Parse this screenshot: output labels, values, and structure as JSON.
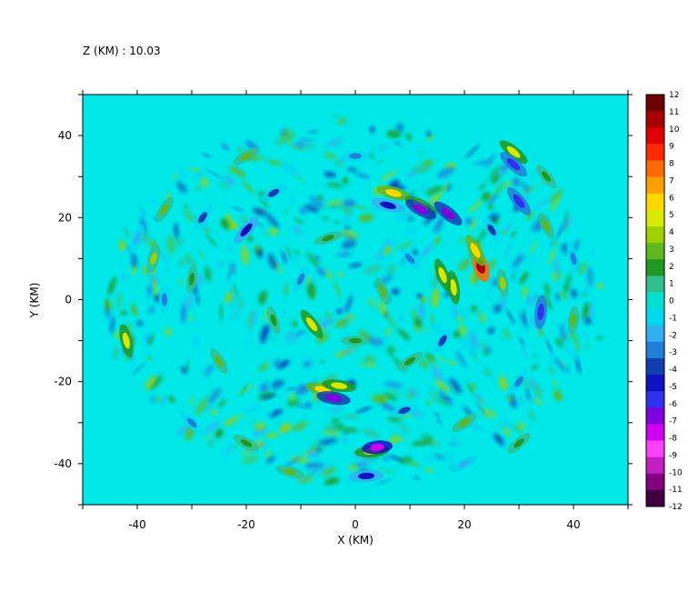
{
  "chart_data": {
    "type": "heatmap",
    "title": "Z (KM) : 10.03",
    "xlabel": "X (KM)",
    "ylabel": "Y (KM)",
    "xlim": [
      -50,
      50
    ],
    "ylim": [
      -50,
      50
    ],
    "x_ticks": [
      -40,
      -20,
      0,
      20,
      40
    ],
    "y_ticks": [
      -40,
      -20,
      0,
      20,
      40
    ],
    "x_minor_ticks": [
      -50,
      -40,
      -30,
      -20,
      -10,
      0,
      10,
      20,
      30,
      40,
      50
    ],
    "y_minor_ticks": [
      -50,
      -40,
      -30,
      -20,
      -10,
      0,
      10,
      20,
      30,
      40,
      50
    ],
    "background_color": "#00e8e8",
    "colorbar": {
      "levels": [
        "12",
        "11",
        "10",
        "9",
        "8",
        "7",
        "6",
        "5",
        "4",
        "3",
        "2",
        "1",
        "0",
        "-1",
        "-2",
        "-3",
        "-4",
        "-5",
        "-6",
        "-7",
        "-8",
        "-9",
        "-10",
        "-11",
        "-12"
      ],
      "colors": [
        "#6b0000",
        "#a80000",
        "#e00000",
        "#ff2a00",
        "#ff6a00",
        "#ffa000",
        "#ffd800",
        "#d8e800",
        "#a0d000",
        "#60b820",
        "#209820",
        "#30c090",
        "#00e0d0",
        "#00d8f0",
        "#30b0f0",
        "#2080d8",
        "#1040b0",
        "#1010c0",
        "#3030f0",
        "#8000e0",
        "#d000f0",
        "#ff40ff",
        "#c020c0",
        "#800080",
        "#400040"
      ]
    },
    "features": [
      {
        "x": 23,
        "y": 8,
        "value": 11
      },
      {
        "x": 22,
        "y": 12,
        "value": 6
      },
      {
        "x": 18,
        "y": 3,
        "value": 5
      },
      {
        "x": 16,
        "y": 6,
        "value": 5
      },
      {
        "x": 29,
        "y": 36,
        "value": 5
      },
      {
        "x": 7,
        "y": 26,
        "value": 6
      },
      {
        "x": 12,
        "y": 23,
        "value": 5
      },
      {
        "x": -6,
        "y": -22,
        "value": 6
      },
      {
        "x": -3,
        "y": -21,
        "value": 5
      },
      {
        "x": 3,
        "y": -37,
        "value": 5
      },
      {
        "x": -8,
        "y": -6,
        "value": 5
      },
      {
        "x": -42,
        "y": -10,
        "value": 5
      },
      {
        "x": -37,
        "y": 10,
        "value": 4
      },
      {
        "x": 27,
        "y": 4,
        "value": 4
      },
      {
        "x": 5,
        "y": 2,
        "value": 3
      },
      {
        "x": -25,
        "y": -15,
        "value": 3
      },
      {
        "x": -35,
        "y": 22,
        "value": 3
      },
      {
        "x": -20,
        "y": 35,
        "value": 3
      },
      {
        "x": 35,
        "y": 18,
        "value": 3
      },
      {
        "x": 40,
        "y": -5,
        "value": 3
      },
      {
        "x": -12,
        "y": -42,
        "value": 3
      },
      {
        "x": 20,
        "y": -30,
        "value": 3
      },
      {
        "x": 17,
        "y": 21,
        "value": -7
      },
      {
        "x": 12,
        "y": 22,
        "value": -7
      },
      {
        "x": 30,
        "y": 24,
        "value": -6
      },
      {
        "x": 29,
        "y": 33,
        "value": -6
      },
      {
        "x": 34,
        "y": -3,
        "value": -6
      },
      {
        "x": -4,
        "y": -24,
        "value": -7
      },
      {
        "x": 4,
        "y": -36,
        "value": -8
      },
      {
        "x": 2,
        "y": -43,
        "value": -5
      },
      {
        "x": 6,
        "y": 23,
        "value": -5
      },
      {
        "x": -20,
        "y": 17,
        "value": -5
      },
      {
        "x": -28,
        "y": 20,
        "value": -4
      },
      {
        "x": 16,
        "y": -10,
        "value": -4
      },
      {
        "x": 9,
        "y": -27,
        "value": -4
      },
      {
        "x": -15,
        "y": 26,
        "value": -4
      },
      {
        "x": 25,
        "y": 17,
        "value": -4
      },
      {
        "x": -35,
        "y": 0,
        "value": -3
      },
      {
        "x": -10,
        "y": 5,
        "value": -3
      },
      {
        "x": 10,
        "y": 10,
        "value": -3
      },
      {
        "x": 30,
        "y": -20,
        "value": -3
      },
      {
        "x": -30,
        "y": -30,
        "value": -3
      },
      {
        "x": 0,
        "y": 35,
        "value": -3
      },
      {
        "x": 40,
        "y": 10,
        "value": -3
      },
      {
        "x": -40,
        "y": 15,
        "value": -2
      },
      {
        "x": 20,
        "y": -40,
        "value": -2
      },
      {
        "x": -20,
        "y": -35,
        "value": 2
      },
      {
        "x": 30,
        "y": -35,
        "value": 2
      },
      {
        "x": -30,
        "y": 5,
        "value": 2
      },
      {
        "x": 0,
        "y": -10,
        "value": 2
      },
      {
        "x": 10,
        "y": -15,
        "value": 2
      },
      {
        "x": -15,
        "y": -5,
        "value": 2
      },
      {
        "x": 35,
        "y": 30,
        "value": 2
      },
      {
        "x": -5,
        "y": 15,
        "value": 2
      }
    ]
  }
}
